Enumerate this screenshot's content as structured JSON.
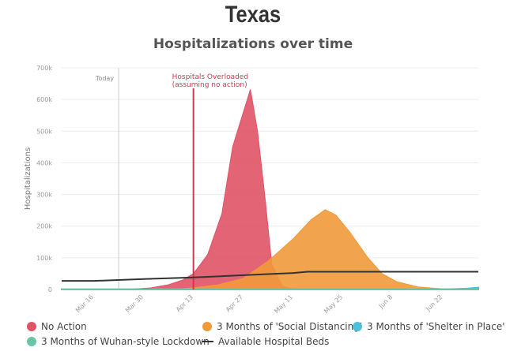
{
  "chart_data": {
    "type": "area",
    "title": "Texas",
    "subtitle": "Hospitalizations over time",
    "ylabel": "Hospitalizations",
    "xlabel": "",
    "xlim": [
      "Mar 7",
      "Jul 2"
    ],
    "ylim": [
      0,
      700000
    ],
    "yticks": [
      0,
      100000,
      200000,
      300000,
      400000,
      500000,
      600000,
      700000
    ],
    "ytick_labels": [
      "0",
      "100k",
      "200k",
      "300k",
      "400k",
      "500k",
      "600k",
      "700k"
    ],
    "xticks": [
      "Mar 16",
      "Mar 30",
      "Apr 13",
      "Apr 27",
      "May 11",
      "May 25",
      "Jun 8",
      "Jun 22"
    ],
    "grid": true,
    "legend_position": "bottom",
    "annotations": [
      {
        "date": "Mar 23",
        "label": "Today",
        "color": "#cccccc"
      },
      {
        "date": "Apr 13",
        "label": "Hospitals Overloaded",
        "label2": "(assuming no action)",
        "color": "#d9344f"
      }
    ],
    "series": [
      {
        "name": "No Action",
        "color": "#e05366",
        "kind": "area",
        "points": [
          [
            "Mar 7",
            0
          ],
          [
            "Mar 25",
            0
          ],
          [
            "Apr 1",
            5000
          ],
          [
            "Apr 6",
            15000
          ],
          [
            "Apr 10",
            30000
          ],
          [
            "Apr 13",
            50000
          ],
          [
            "Apr 17",
            110000
          ],
          [
            "Apr 21",
            240000
          ],
          [
            "Apr 24",
            450000
          ],
          [
            "Apr 29",
            632000
          ],
          [
            "May 1",
            500000
          ],
          [
            "May 3",
            300000
          ],
          [
            "May 5",
            80000
          ],
          [
            "May 8",
            10000
          ],
          [
            "May 12",
            0
          ],
          [
            "Jul 2",
            0
          ]
        ]
      },
      {
        "name": "3 Months of 'Social Distancing'",
        "color": "#ef9a3a",
        "kind": "area",
        "points": [
          [
            "Mar 7",
            0
          ],
          [
            "Apr 6",
            0
          ],
          [
            "Apr 13",
            5000
          ],
          [
            "Apr 20",
            15000
          ],
          [
            "Apr 27",
            35000
          ],
          [
            "May 4",
            90000
          ],
          [
            "May 11",
            160000
          ],
          [
            "May 16",
            220000
          ],
          [
            "May 20",
            252000
          ],
          [
            "May 23",
            235000
          ],
          [
            "May 27",
            180000
          ],
          [
            "Jun 1",
            100000
          ],
          [
            "Jun 5",
            50000
          ],
          [
            "Jun 9",
            25000
          ],
          [
            "Jun 15",
            8000
          ],
          [
            "Jun 22",
            2000
          ],
          [
            "Jul 2",
            0
          ]
        ]
      },
      {
        "name": "3 Months of 'Shelter in Place'",
        "color": "#4fc0dc",
        "kind": "area",
        "points": [
          [
            "Mar 7",
            0
          ],
          [
            "Jun 22",
            0
          ],
          [
            "Jun 29",
            3000
          ],
          [
            "Jul 2",
            6000
          ]
        ]
      },
      {
        "name": "3 Months of Wuhan-style Lockdown",
        "color": "#6cc4a8",
        "kind": "area",
        "points": [
          [
            "Mar 7",
            1000
          ],
          [
            "Jul 2",
            1000
          ]
        ]
      },
      {
        "name": "Available Hospital Beds",
        "color": "#333333",
        "kind": "line",
        "points": [
          [
            "Mar 7",
            27000
          ],
          [
            "Mar 16",
            27000
          ],
          [
            "Mar 30",
            33000
          ],
          [
            "Apr 13",
            38000
          ],
          [
            "Apr 27",
            45000
          ],
          [
            "May 11",
            52000
          ],
          [
            "May 15",
            56000
          ],
          [
            "Jul 2",
            56000
          ]
        ]
      }
    ]
  }
}
